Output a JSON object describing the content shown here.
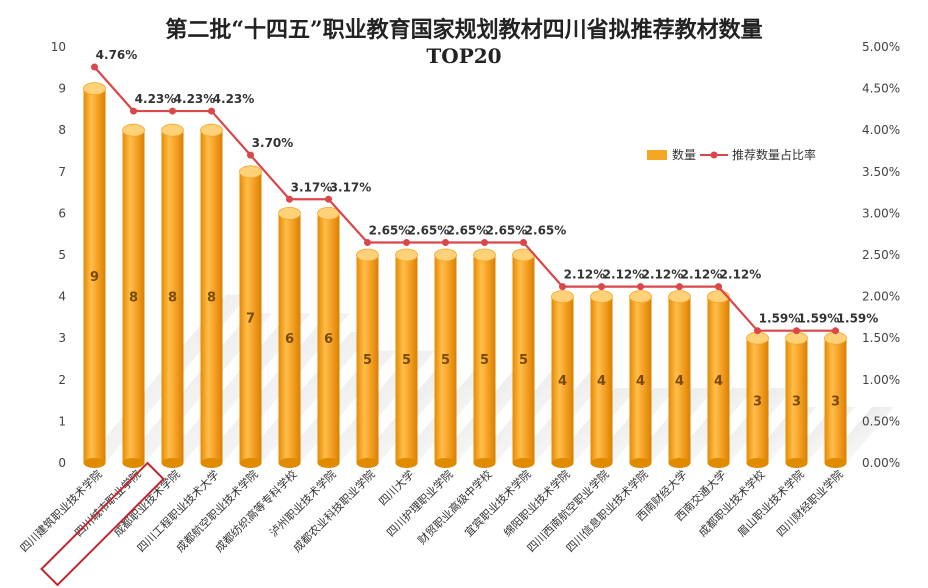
{
  "title": "第二批“十四五”职业教育国家规划教材四川省拟推荐教材数量",
  "subtitle": "TOP20",
  "chart_data": {
    "type": "bar",
    "categories": [
      "四川建筑职业技术学院",
      "四川城市职业学院",
      "成都职业技术学院",
      "四川工程职业技术大学",
      "成都航空职业技术学院",
      "成都纺织高等专科学校",
      "泸州职业技术学院",
      "成都农业科技职业学院",
      "四川大学",
      "四川护理职业学院",
      "财贸职业高级中学校",
      "宜宾职业技术学院",
      "绵阳职业技术学院",
      "四川西南航空职业学院",
      "四川信息职业技术学院",
      "西南财经大学",
      "西南交通大学",
      "成都职业技术学校",
      "眉山职业技术学院",
      "四川财经职业学院"
    ],
    "series": [
      {
        "name": "数量",
        "values": [
          9,
          8,
          8,
          8,
          7,
          6,
          6,
          5,
          5,
          5,
          5,
          5,
          4,
          4,
          4,
          4,
          4,
          3,
          3,
          3
        ]
      },
      {
        "name": "推荐数量占比率",
        "values": [
          4.76,
          4.23,
          4.23,
          4.23,
          3.7,
          3.17,
          3.17,
          2.65,
          2.65,
          2.65,
          2.65,
          2.65,
          2.12,
          2.12,
          2.12,
          2.12,
          2.12,
          1.59,
          1.59,
          1.59
        ],
        "labels": [
          "4.76%",
          "4.23%",
          "4.23%",
          "4.23%",
          "3.70%",
          "3.17%",
          "3.17%",
          "2.65%",
          "2.65%",
          "2.65%",
          "2.65%",
          "2.65%",
          "2.12%",
          "2.12%",
          "2.12%",
          "2.12%",
          "2.12%",
          "1.59%",
          "1.59%",
          "1.59%"
        ]
      }
    ],
    "ylim": [
      0,
      10
    ],
    "y_ticks": [
      "0",
      "1",
      "2",
      "3",
      "4",
      "5",
      "6",
      "7",
      "8",
      "9",
      "10"
    ],
    "y2lim": [
      0,
      5
    ],
    "y2_ticks": [
      "0.00%",
      "0.50%",
      "1.00%",
      "1.50%",
      "2.00%",
      "2.50%",
      "3.00%",
      "3.50%",
      "4.00%",
      "4.50%",
      "5.00%"
    ],
    "legend_position": "top-right",
    "highlighted_category": "四川城市职业学院",
    "colors": {
      "bar": "#f5a623",
      "bar_dark": "#e08a00",
      "bar_light": "#ffd27a",
      "line": "#d9474a",
      "highlight_box": "#c0282d"
    }
  }
}
